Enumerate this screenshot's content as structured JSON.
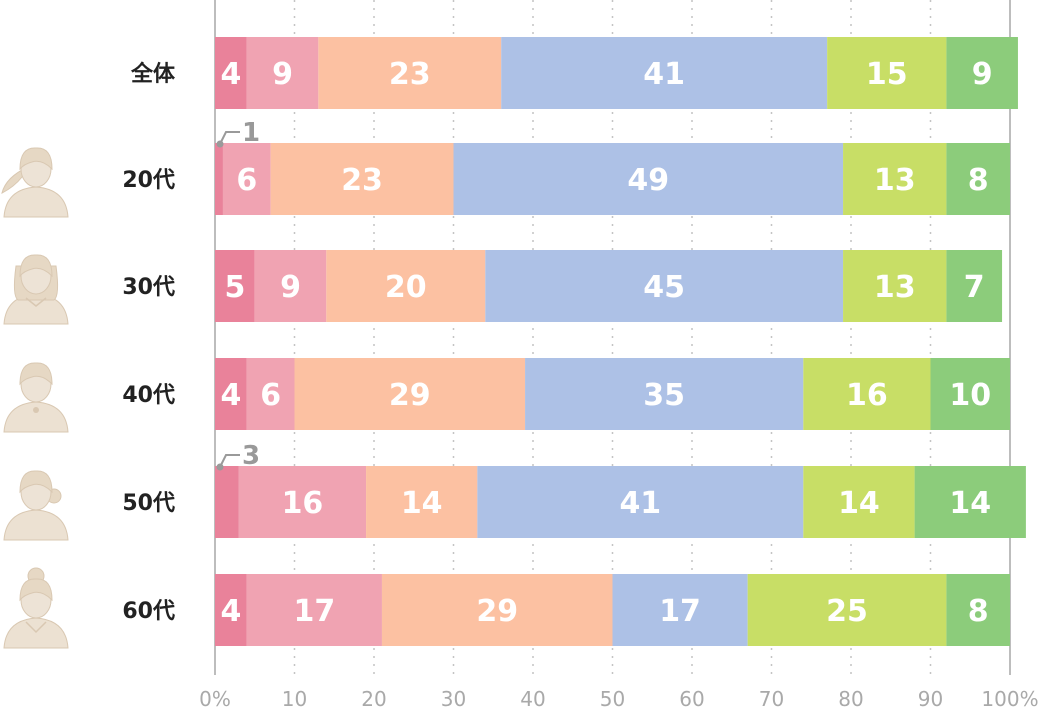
{
  "chart_data": {
    "type": "bar",
    "orientation": "horizontal",
    "stacked": true,
    "categories": [
      "全体",
      "20代",
      "30代",
      "40代",
      "50代",
      "60代"
    ],
    "series": [
      {
        "values": [
          4,
          1,
          5,
          4,
          3,
          4
        ]
      },
      {
        "values": [
          9,
          6,
          9,
          6,
          16,
          17
        ]
      },
      {
        "values": [
          23,
          23,
          20,
          29,
          14,
          29
        ]
      },
      {
        "values": [
          41,
          49,
          45,
          35,
          41,
          17
        ]
      },
      {
        "values": [
          15,
          13,
          13,
          16,
          14,
          25
        ]
      },
      {
        "values": [
          9,
          8,
          7,
          10,
          14,
          8
        ]
      }
    ],
    "colors": [
      "#e9829a",
      "#f0a3b2",
      "#fcc1a2",
      "#adc1e6",
      "#c8de66",
      "#8ccc7b"
    ],
    "callouts": [
      {
        "category": "20代",
        "text": "1"
      },
      {
        "category": "50代",
        "text": "3"
      }
    ],
    "xticks": [
      "0%",
      "10",
      "20",
      "30",
      "40",
      "50",
      "60",
      "70",
      "80",
      "90",
      "100%"
    ],
    "xlim": [
      0,
      100
    ],
    "grid": true,
    "row_icons": [
      "",
      "woman-hair-side-icon",
      "woman-long-hair-icon",
      "woman-short-hair-icon",
      "woman-ponytail-icon",
      "woman-bun-icon"
    ]
  }
}
